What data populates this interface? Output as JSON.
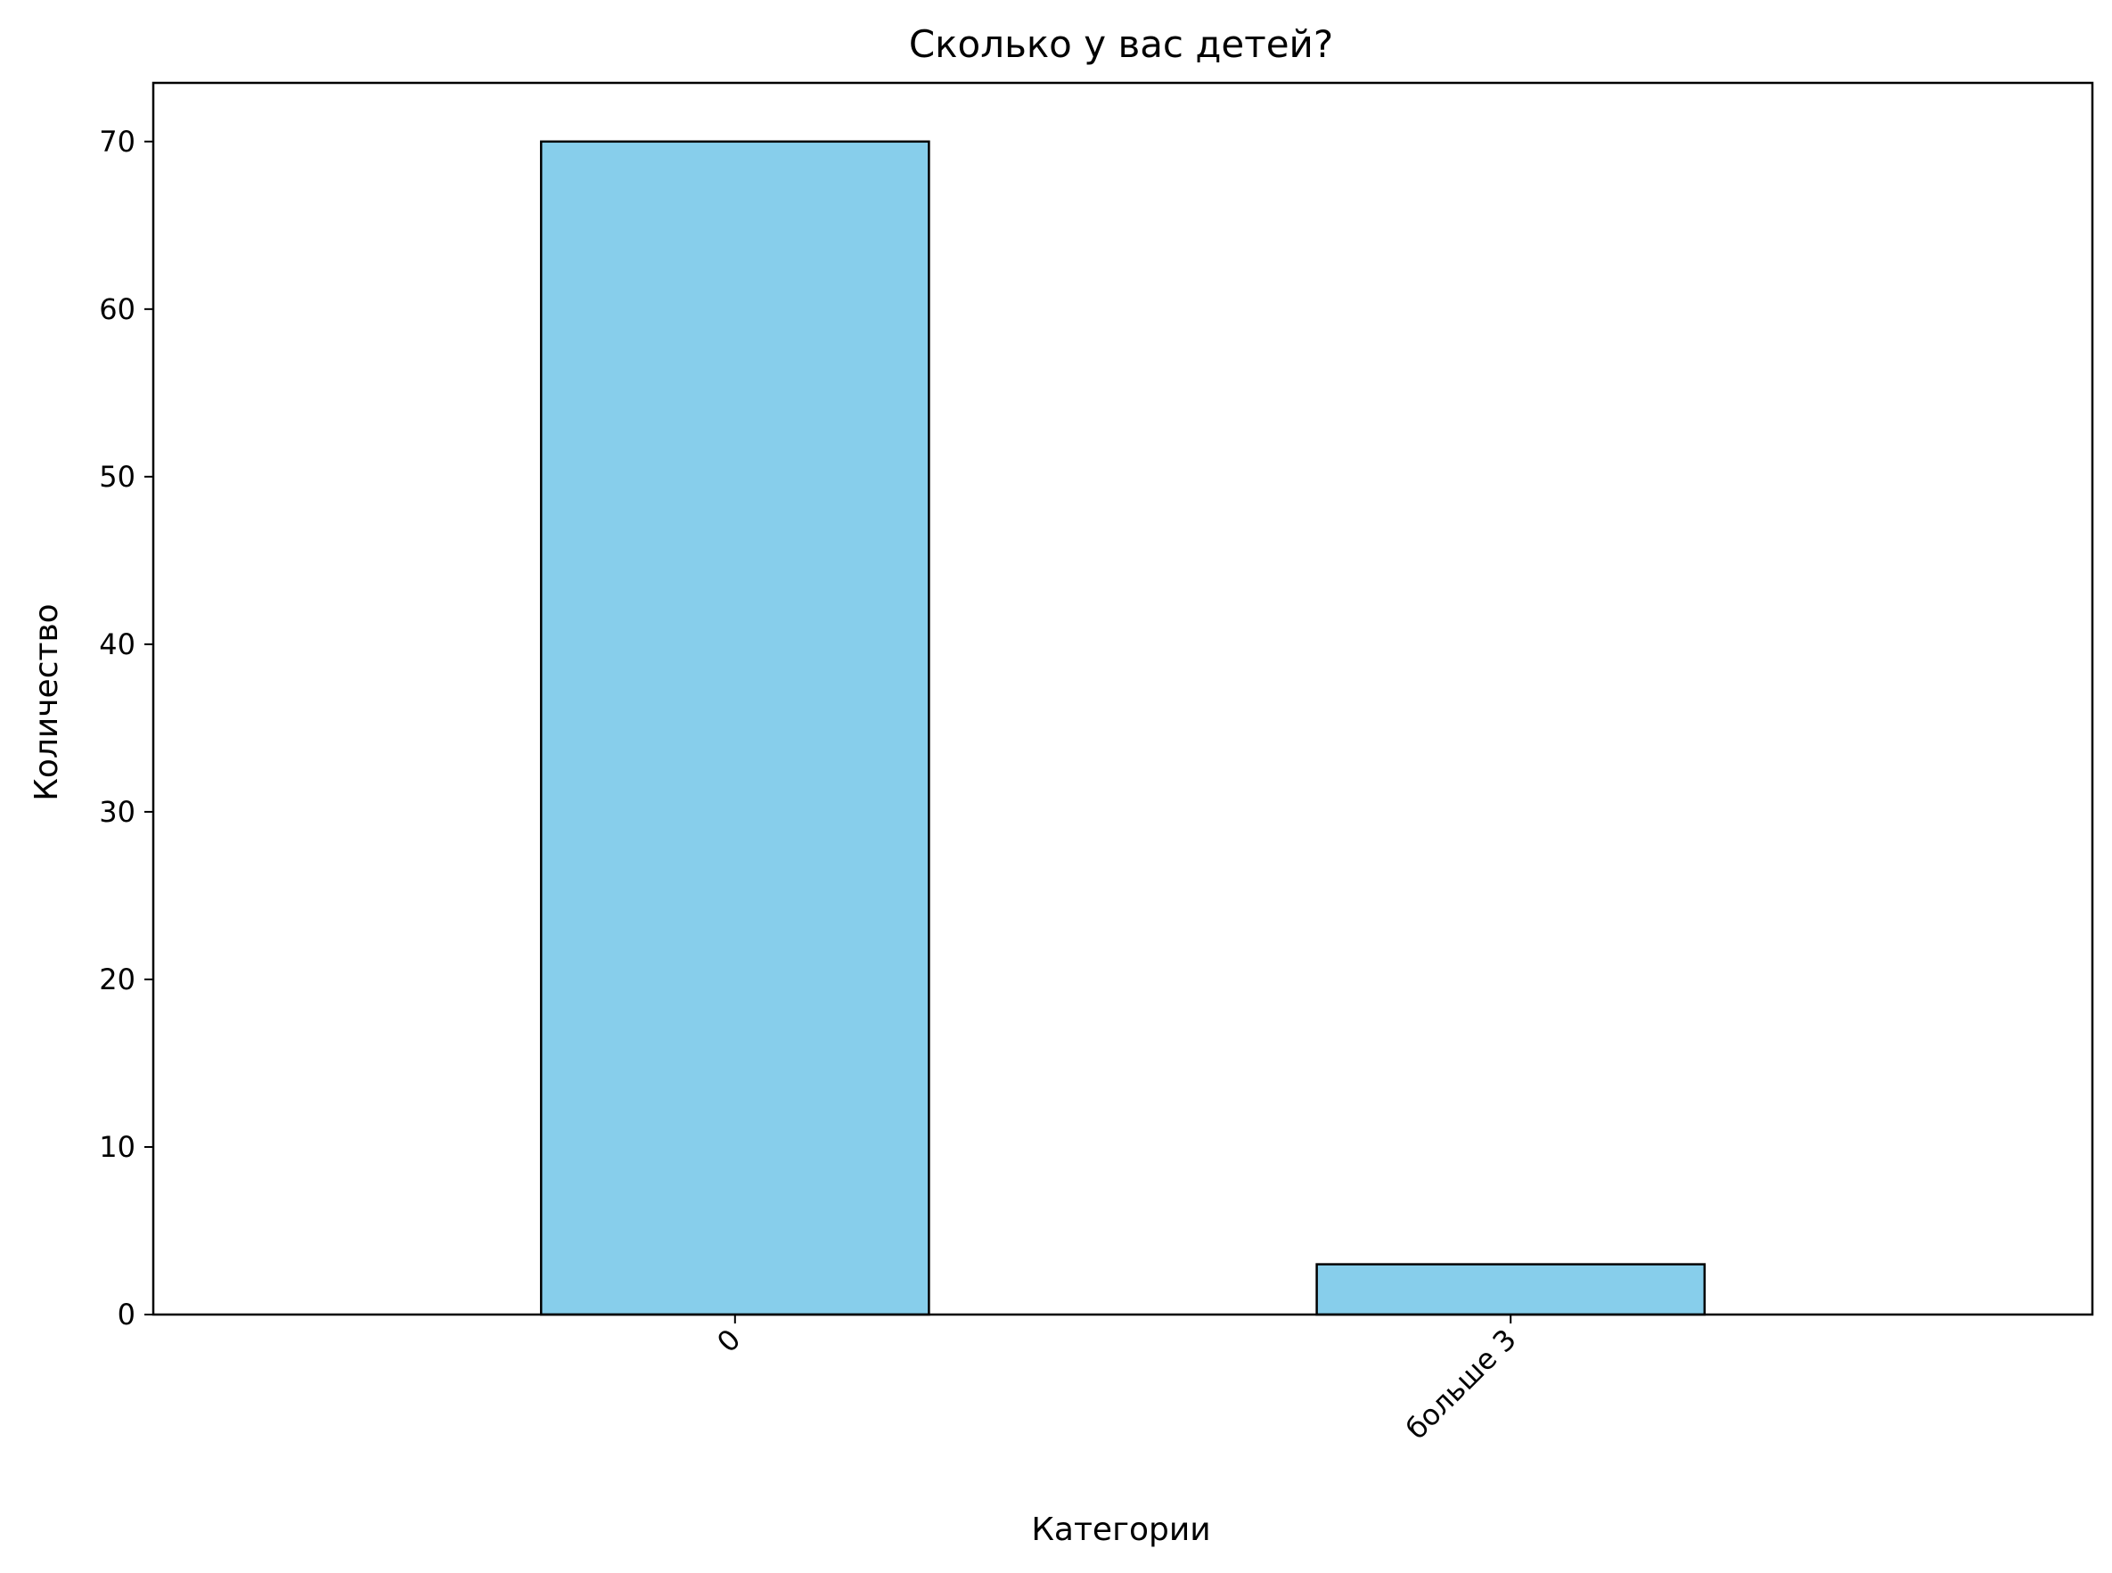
{
  "chart_data": {
    "type": "bar",
    "title": "Сколько у вас детей?",
    "xlabel": "Категории",
    "ylabel": "Количество",
    "categories": [
      "0",
      "больше 3"
    ],
    "values": [
      70,
      3
    ],
    "ylim": [
      0,
      73.5
    ],
    "yticks": [
      0,
      10,
      20,
      30,
      40,
      50,
      60,
      70
    ],
    "grid": false,
    "legend": "none",
    "xtick_rotation": -45,
    "colors": {
      "bar_fill": "#87CEEB",
      "bar_edge": "#000000"
    }
  }
}
